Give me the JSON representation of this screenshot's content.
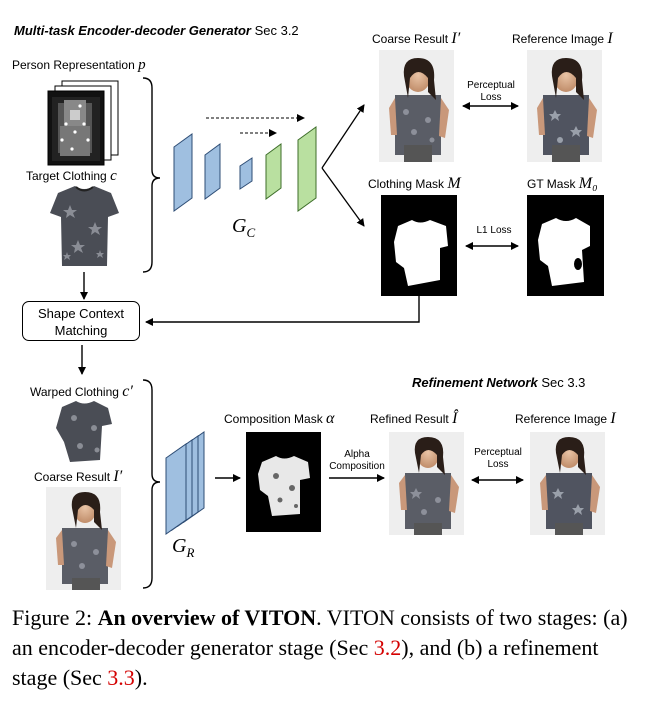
{
  "top": {
    "title": "Multi-task Encoder-decoder Generator",
    "sec": "Sec 3.2",
    "person_rep": "Person Representation",
    "person_sym": "p",
    "target_clothing": "Target Clothing",
    "target_sym": "c",
    "gen_label": "G",
    "gen_sub": "C",
    "coarse_result": "Coarse Result",
    "coarse_sym": "I′",
    "reference_image": "Reference Image",
    "reference_sym": "I",
    "perceptual_loss": "Perceptual\nLoss",
    "clothing_mask": "Clothing Mask",
    "clothing_mask_sym": "M",
    "gt_mask": "GT Mask",
    "gt_mask_sym": "M₀",
    "l1_loss": "L1 Loss"
  },
  "matching": {
    "box": "Shape Context\nMatching"
  },
  "bottom": {
    "title": "Refinement Network",
    "sec": "Sec 3.3",
    "warped_clothing": "Warped Clothing",
    "warped_sym": "c′",
    "coarse_result": "Coarse Result",
    "coarse_sym": "I′",
    "gen_label": "G",
    "gen_sub": "R",
    "composition_mask": "Composition Mask",
    "composition_sym": "α",
    "alpha_composition": "Alpha\nComposition",
    "refined_result": "Refined Result",
    "refined_sym": "Î",
    "perceptual_loss": "Perceptual\nLoss",
    "reference_image": "Reference Image",
    "reference_sym": "I"
  },
  "caption": {
    "prefix": "Figure 2: ",
    "bold": "An overview of VITON",
    "text1": ". VITON consists of two stages: (a) an encoder-decoder generator stage (Sec ",
    "ref1": "3.2",
    "text2": "), and (b) a refinement stage (Sec ",
    "ref2": "3.3",
    "text3": ")."
  },
  "colors": {
    "encoder_blue": "#9fbfe0",
    "decoder_green": "#b9e0a0",
    "citation_red": "#d40000"
  }
}
